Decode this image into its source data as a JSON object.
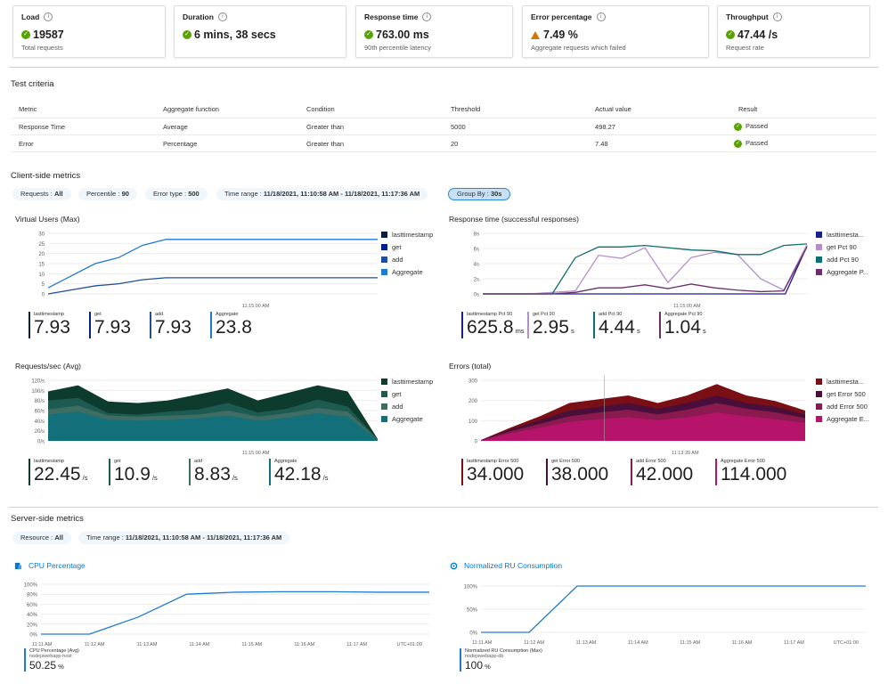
{
  "kpis": [
    {
      "title": "Load",
      "value": "19587",
      "sub": "Total requests",
      "status": "ok"
    },
    {
      "title": "Duration",
      "value": "6 mins, 38 secs",
      "sub": "",
      "status": "ok"
    },
    {
      "title": "Response time",
      "value": "763.00 ms",
      "sub": "90th percentile latency",
      "status": "ok"
    },
    {
      "title": "Error percentage",
      "value": "7.49 %",
      "sub": "Aggregate requests which failed",
      "status": "warn"
    },
    {
      "title": "Throughput",
      "value": "47.44 /s",
      "sub": "Request rate",
      "status": "ok"
    }
  ],
  "test_criteria": {
    "title": "Test criteria",
    "headers": [
      "Metric",
      "Aggregate function",
      "Condition",
      "Threshold",
      "Actual value",
      "Result"
    ],
    "rows": [
      [
        "Response Time",
        "Average",
        "Greater than",
        "5000",
        "498.27",
        "Passed"
      ],
      [
        "Error",
        "Percentage",
        "Greater than",
        "20",
        "7.48",
        "Passed"
      ]
    ]
  },
  "client": {
    "title": "Client-side metrics",
    "filters": [
      {
        "label": "Requests : ",
        "value": "All"
      },
      {
        "label": "Percentile : ",
        "value": "90"
      },
      {
        "label": "Error type : ",
        "value": "500"
      },
      {
        "label": "Time range : ",
        "value": "11/18/2021, 11:10:58 AM - 11/18/2021, 11:17:36 AM"
      },
      {
        "label": "Group By : ",
        "value": "30s"
      }
    ]
  },
  "chart_data": [
    {
      "type": "line",
      "title": "Virtual Users (Max)",
      "yticks": [
        "30",
        "25",
        "20",
        "15",
        "10",
        "5",
        "0"
      ],
      "ylim": [
        0,
        30
      ],
      "xlabel_tick": "11:15:00 AM",
      "series": [
        {
          "name": "lasttimestamp",
          "color": "#0b1f3a",
          "values": []
        },
        {
          "name": "get",
          "color": "#001f8c",
          "values": []
        },
        {
          "name": "add",
          "color": "#1f4e9c",
          "values": [
            0,
            2,
            4,
            5,
            7,
            8,
            8,
            8,
            8,
            8,
            8,
            8,
            8,
            8,
            8
          ]
        },
        {
          "name": "Aggregate",
          "color": "#1f7ad4",
          "values": [
            3,
            9,
            15,
            18,
            24,
            27,
            27,
            27,
            27,
            27,
            27,
            27,
            27,
            27,
            27
          ]
        }
      ],
      "metrics": [
        {
          "label": "lasttimestamp",
          "value": "7.93",
          "unit": "",
          "color": "#0b1f3a"
        },
        {
          "label": "get",
          "value": "7.93",
          "unit": "",
          "color": "#001f8c"
        },
        {
          "label": "add",
          "value": "7.93",
          "unit": "",
          "color": "#1f4e9c"
        },
        {
          "label": "Aggregate",
          "value": "23.8",
          "unit": "",
          "color": "#1f7ad4"
        }
      ]
    },
    {
      "type": "line",
      "title": "Response time (successful responses)",
      "yticks": [
        "8s",
        "6s",
        "4s",
        "2s",
        "0s"
      ],
      "ylim": [
        0,
        8
      ],
      "xlabel_tick": "11:15:00 AM",
      "series": [
        {
          "name": "lasttimesta...",
          "color": "#1e1e8c",
          "values": [
            0,
            0,
            0,
            0,
            0,
            0,
            0,
            0,
            0,
            0,
            0,
            0,
            0,
            0,
            0,
            6.3
          ]
        },
        {
          "name": "get Pct 90",
          "color": "#b38fca",
          "values": [
            0,
            0,
            0,
            0.2,
            0.4,
            5.1,
            4.7,
            6.1,
            1.5,
            4.8,
            5.5,
            5.2,
            2,
            0.5,
            6.5
          ]
        },
        {
          "name": "add Pct 90",
          "color": "#0f6e6e",
          "values": [
            0,
            0,
            0,
            0,
            4.8,
            6.2,
            6.2,
            6.4,
            6.1,
            5.8,
            5.7,
            5.2,
            5.2,
            6.4,
            6.6
          ]
        },
        {
          "name": "Aggregate P...",
          "color": "#6b2f6b",
          "values": [
            0,
            0,
            0,
            0,
            0.2,
            0.8,
            0.8,
            1.2,
            0.7,
            1.3,
            0.8,
            0.5,
            0.3,
            0.4,
            6.2
          ]
        }
      ],
      "metrics": [
        {
          "label": "lasttimestamp Pct 90",
          "value": "625.8",
          "unit": "ms",
          "color": "#1e1e8c"
        },
        {
          "label": "get Pct 90",
          "value": "2.95",
          "unit": "s",
          "color": "#b38fca"
        },
        {
          "label": "add Pct 90",
          "value": "4.44",
          "unit": "s",
          "color": "#0f6e6e"
        },
        {
          "label": "Aggregate Pct 90",
          "value": "1.04",
          "unit": "s",
          "color": "#6b2f6b"
        }
      ]
    },
    {
      "type": "area",
      "title": "Requests/sec (Avg)",
      "yticks": [
        "120/s",
        "100/s",
        "80/s",
        "60/s",
        "40/s",
        "20/s",
        "0/s"
      ],
      "ylim": [
        0,
        120
      ],
      "xlabel_tick": "11:15:00 AM",
      "series": [
        {
          "name": "lasttimestamp",
          "color": "#0d3b2e",
          "values": [
            98,
            110,
            78,
            75,
            80,
            92,
            104,
            80,
            95,
            110,
            98,
            4
          ]
        },
        {
          "name": "get",
          "color": "#1d5b52",
          "values": [
            80,
            85,
            55,
            52,
            58,
            62,
            75,
            56,
            64,
            82,
            68,
            3
          ]
        },
        {
          "name": "add",
          "color": "#3f6d63",
          "values": [
            62,
            70,
            50,
            48,
            50,
            52,
            60,
            48,
            55,
            65,
            58,
            3
          ]
        },
        {
          "name": "Aggregate",
          "color": "#13707a",
          "values": [
            52,
            58,
            42,
            40,
            42,
            45,
            50,
            40,
            46,
            55,
            48,
            2
          ]
        }
      ],
      "metrics": [
        {
          "label": "lasttimestamp",
          "value": "22.45",
          "unit": "/s",
          "color": "#0d3b2e"
        },
        {
          "label": "get",
          "value": "10.9",
          "unit": "/s",
          "color": "#1d5b52"
        },
        {
          "label": "add",
          "value": "8.83",
          "unit": "/s",
          "color": "#3f6d63"
        },
        {
          "label": "Aggregate",
          "value": "42.18",
          "unit": "/s",
          "color": "#13707a"
        }
      ]
    },
    {
      "type": "area",
      "title": "Errors (total)",
      "yticks": [
        "300",
        "200",
        "100",
        "0"
      ],
      "ylim": [
        0,
        320
      ],
      "xlabel_tick": "11:13:20 AM",
      "series": [
        {
          "name": "lasttimesta...",
          "color": "#7a0f15",
          "values": [
            5,
            70,
            130,
            200,
            220,
            240,
            200,
            240,
            300,
            240,
            210,
            160
          ]
        },
        {
          "name": "get Error 500",
          "color": "#4a0e3a",
          "values": [
            4,
            60,
            110,
            160,
            180,
            200,
            170,
            200,
            240,
            200,
            180,
            140
          ]
        },
        {
          "name": "add Error 500",
          "color": "#8a1a4f",
          "values": [
            3,
            50,
            90,
            130,
            150,
            165,
            140,
            165,
            200,
            170,
            150,
            120
          ]
        },
        {
          "name": "Aggregate E...",
          "color": "#b5146a",
          "values": [
            2,
            40,
            70,
            100,
            115,
            125,
            110,
            125,
            150,
            130,
            115,
            95
          ]
        }
      ],
      "metrics": [
        {
          "label": "lasttimestamp Error 500",
          "value": "34.000",
          "unit": "",
          "color": "#7a0f15"
        },
        {
          "label": "get Error 500",
          "value": "38.000",
          "unit": "",
          "color": "#4a0e3a"
        },
        {
          "label": "add Error 500",
          "value": "42.000",
          "unit": "",
          "color": "#8a1a4f"
        },
        {
          "label": "Aggregate Error 500",
          "value": "114.000",
          "unit": "",
          "color": "#b5146a"
        }
      ]
    },
    {
      "type": "line",
      "title": "CPU Percentage",
      "yticks": [
        "100%",
        "80%",
        "60%",
        "40%",
        "20%",
        "0%"
      ],
      "ylim": [
        0,
        100
      ],
      "xticks": [
        "11:11 AM",
        "11:12 AM",
        "11:13 AM",
        "11:14 AM",
        "11:15 AM",
        "11:16 AM",
        "11:17 AM",
        "UTC+01:00"
      ],
      "series": [
        {
          "name": "CPU Percentage (Avg)",
          "color": "#1f7ad4",
          "values": [
            0,
            0,
            34,
            80,
            84,
            85,
            85,
            84,
            84
          ]
        }
      ],
      "metrics": [
        {
          "label": "CPU Percentage (Avg)",
          "sublabel": "nodejswebapp-host",
          "value": "50.25",
          "unit": "%",
          "color": "#1f7ad4"
        }
      ]
    },
    {
      "type": "line",
      "title": "Normalized RU Consumption",
      "yticks": [
        "100%",
        "50%",
        "0%"
      ],
      "ylim": [
        0,
        100
      ],
      "xticks": [
        "11:11 AM",
        "11:12 AM",
        "11:13 AM",
        "11:14 AM",
        "11:15 AM",
        "11:16 AM",
        "11:17 AM",
        "UTC+01:00"
      ],
      "series": [
        {
          "name": "Normalized RU Consumption (Max)",
          "color": "#1f7ad4",
          "values": [
            0,
            0,
            100,
            100,
            100,
            100,
            100,
            100,
            100
          ]
        }
      ],
      "metrics": [
        {
          "label": "Normalized RU Consumption (Max)",
          "sublabel": "nodejswebapp-db",
          "value": "100",
          "unit": "%",
          "color": "#1f7ad4"
        }
      ]
    }
  ],
  "server": {
    "title": "Server-side metrics",
    "filters": [
      {
        "label": "Resource : ",
        "value": "All"
      },
      {
        "label": "Time range : ",
        "value": "11/18/2021, 11:10:58 AM - 11/18/2021, 11:17:36 AM"
      }
    ]
  }
}
